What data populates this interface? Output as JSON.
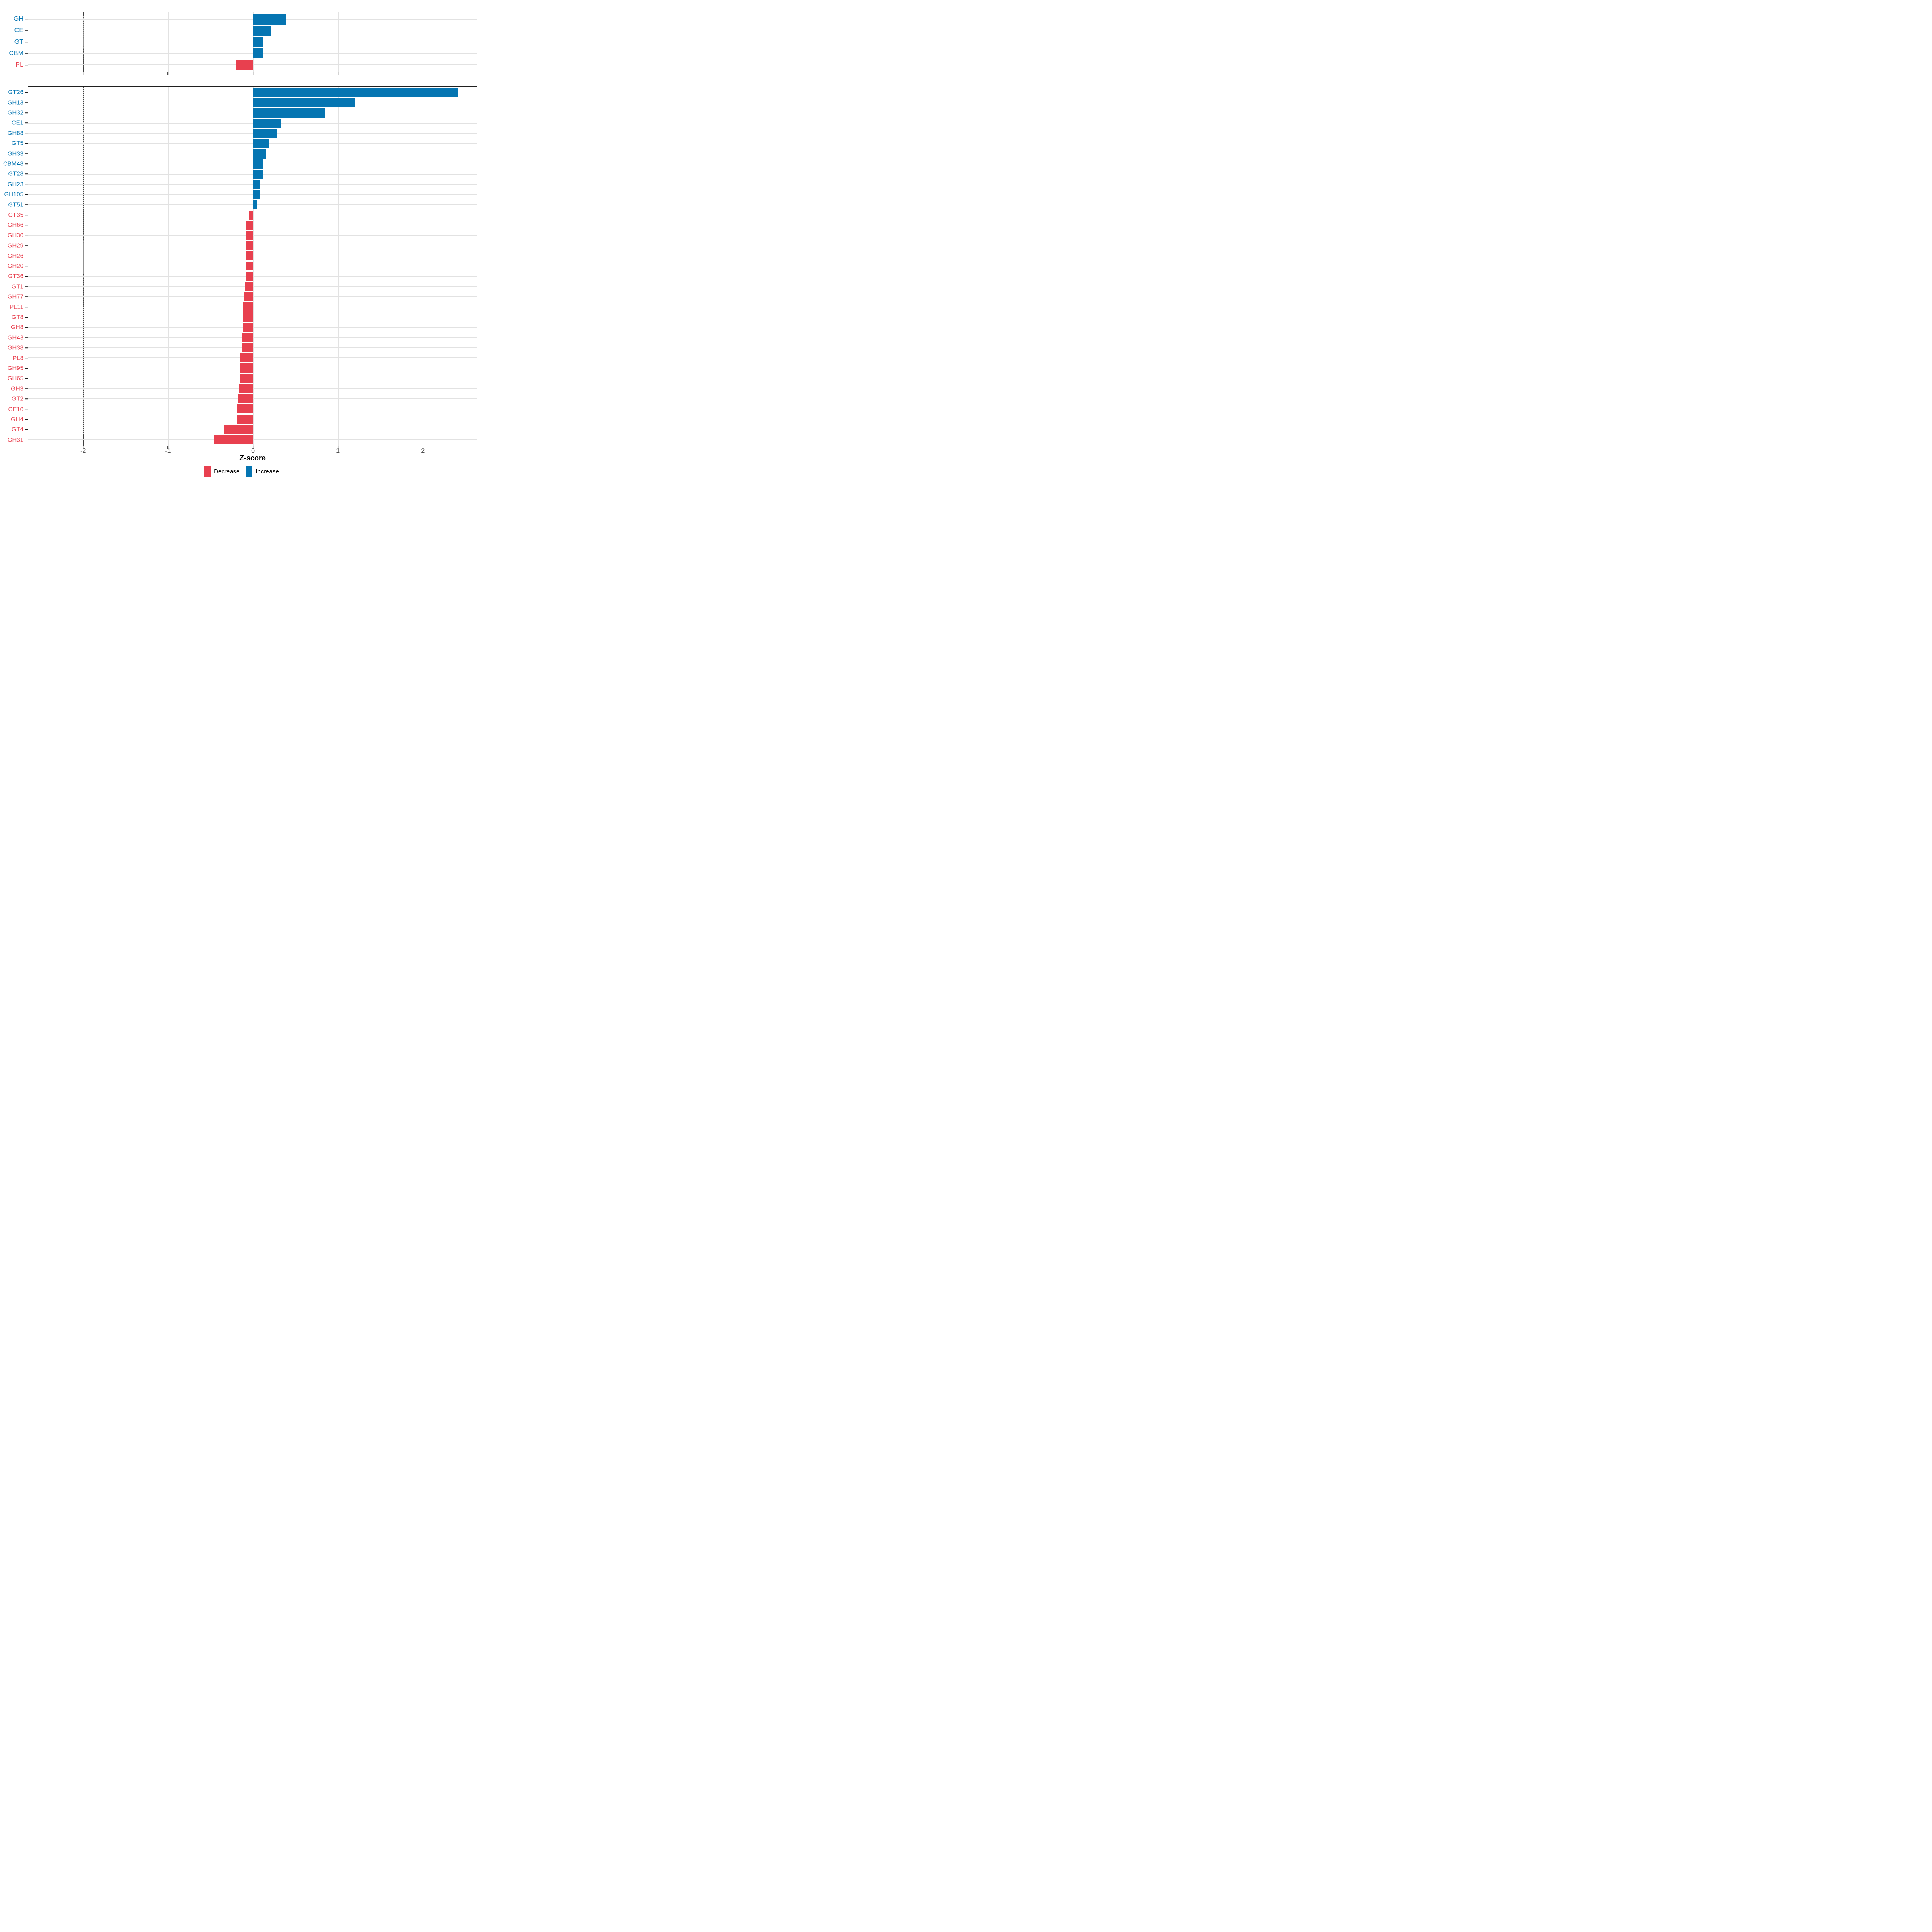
{
  "figure": {
    "xlabel": "Z-score",
    "colors": {
      "increase": "#0575b2",
      "decrease": "#e8404f"
    },
    "x_axis": {
      "range": [
        -2.65,
        2.64
      ],
      "ticks": [
        -2,
        -1,
        0,
        1,
        2
      ],
      "dashed_at": [
        -2,
        2
      ]
    },
    "legend": [
      {
        "label": "Decrease",
        "color": "#e8404f"
      },
      {
        "label": "Increase",
        "color": "#0575b2"
      }
    ]
  },
  "chart_data": [
    {
      "type": "bar",
      "orientation": "horizontal",
      "panel": "top",
      "title": "",
      "xlabel": "Z-score",
      "xlim": [
        -2.65,
        2.64
      ],
      "grid": true,
      "categories": [
        "GH",
        "CE",
        "GT",
        "CBM",
        "PL"
      ],
      "values": [
        0.39,
        0.21,
        0.12,
        0.115,
        -0.2
      ]
    },
    {
      "type": "bar",
      "orientation": "horizontal",
      "panel": "bottom",
      "title": "",
      "xlabel": "Z-score",
      "xlim": [
        -2.65,
        2.64
      ],
      "grid": true,
      "categories": [
        "GT26",
        "GH13",
        "GH32",
        "CE1",
        "GH88",
        "GT5",
        "GH33",
        "CBM48",
        "GT28",
        "GH23",
        "GH105",
        "GT51",
        "GT35",
        "GH66",
        "GH30",
        "GH29",
        "GH26",
        "GH20",
        "GT36",
        "GT1",
        "GH77",
        "PL11",
        "GT8",
        "GH8",
        "GH43",
        "GH38",
        "PL8",
        "GH95",
        "GH65",
        "GH3",
        "GT2",
        "CE10",
        "GH4",
        "GT4",
        "GH31"
      ],
      "values": [
        2.42,
        1.2,
        0.85,
        0.33,
        0.28,
        0.185,
        0.16,
        0.118,
        0.115,
        0.086,
        0.076,
        0.049,
        -0.051,
        -0.085,
        -0.085,
        -0.086,
        -0.086,
        -0.086,
        -0.087,
        -0.092,
        -0.104,
        -0.12,
        -0.121,
        -0.122,
        -0.125,
        -0.127,
        -0.154,
        -0.154,
        -0.155,
        -0.166,
        -0.178,
        -0.182,
        -0.185,
        -0.34,
        -0.46
      ]
    }
  ]
}
